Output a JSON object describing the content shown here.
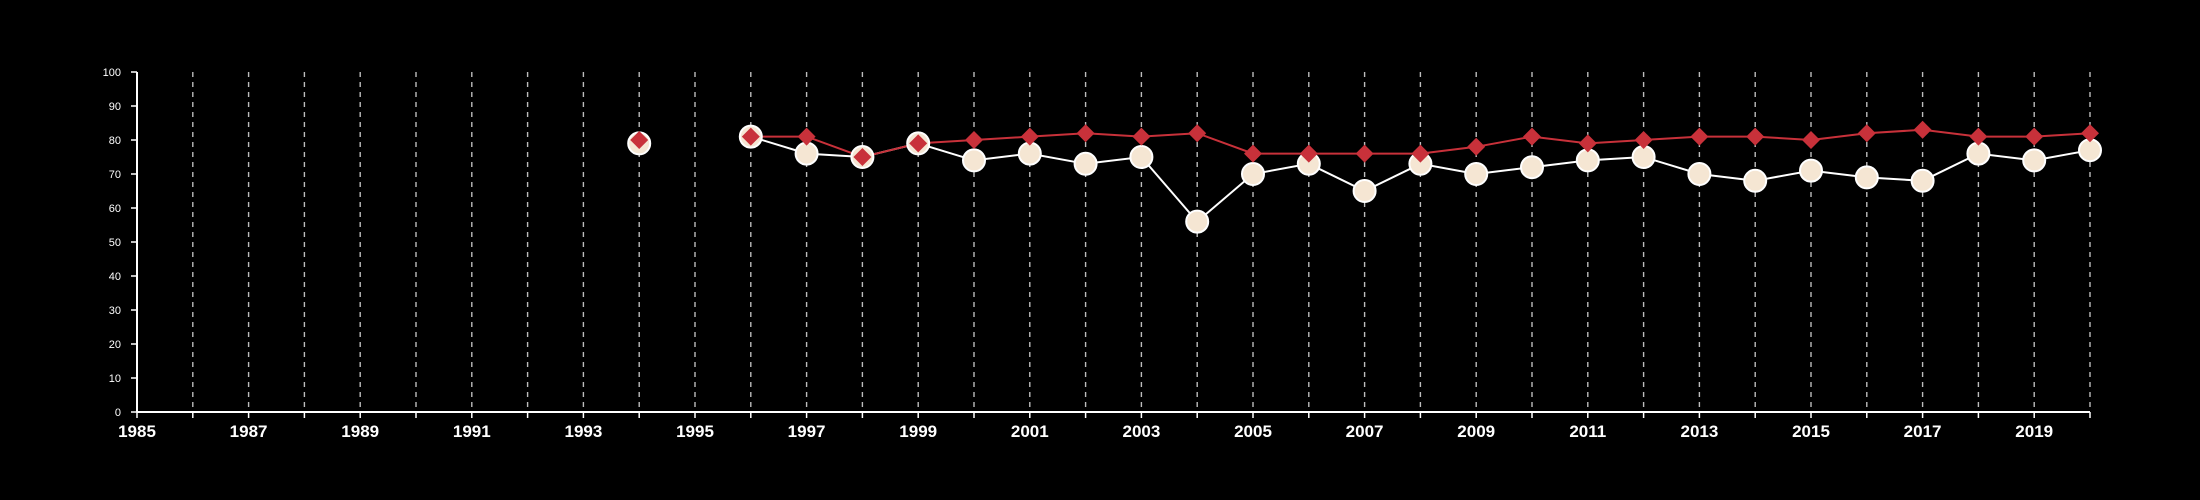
{
  "chart_data": {
    "type": "line",
    "title": "",
    "xlabel": "",
    "ylabel": "",
    "xlim": [
      1985,
      2020
    ],
    "ylim": [
      0,
      100
    ],
    "x_ticks": [
      1985,
      1987,
      1989,
      1991,
      1993,
      1995,
      1997,
      1999,
      2001,
      2003,
      2005,
      2007,
      2009,
      2011,
      2013,
      2015,
      2017,
      2019
    ],
    "y_ticks": [
      0,
      10,
      20,
      30,
      40,
      50,
      60,
      70,
      80,
      90,
      100
    ],
    "vertical_grid": "dashed, every year",
    "background_color": "#000000",
    "axis_color": "#ffffff",
    "series": [
      {
        "marker": "circle",
        "color": "#ffffff",
        "fill": "#f5e6d3",
        "points": [
          {
            "x": 1994,
            "y": 79
          },
          {
            "x": 1996,
            "y": 81
          },
          {
            "x": 1997,
            "y": 76
          },
          {
            "x": 1998,
            "y": 75
          },
          {
            "x": 1999,
            "y": 79
          },
          {
            "x": 2000,
            "y": 74
          },
          {
            "x": 2001,
            "y": 76
          },
          {
            "x": 2002,
            "y": 73
          },
          {
            "x": 2003,
            "y": 75
          },
          {
            "x": 2004,
            "y": 56
          },
          {
            "x": 2005,
            "y": 70
          },
          {
            "x": 2006,
            "y": 73
          },
          {
            "x": 2007,
            "y": 65
          },
          {
            "x": 2008,
            "y": 73
          },
          {
            "x": 2009,
            "y": 70
          },
          {
            "x": 2010,
            "y": 72
          },
          {
            "x": 2011,
            "y": 74
          },
          {
            "x": 2012,
            "y": 75
          },
          {
            "x": 2013,
            "y": 70
          },
          {
            "x": 2014,
            "y": 68
          },
          {
            "x": 2015,
            "y": 71
          },
          {
            "x": 2016,
            "y": 69
          },
          {
            "x": 2017,
            "y": 68
          },
          {
            "x": 2018,
            "y": 76
          },
          {
            "x": 2019,
            "y": 74
          },
          {
            "x": 2020,
            "y": 77
          }
        ]
      },
      {
        "marker": "diamond",
        "color": "#c8313a",
        "points": [
          {
            "x": 1994,
            "y": 80
          },
          {
            "x": 1996,
            "y": 81
          },
          {
            "x": 1997,
            "y": 81
          },
          {
            "x": 1998,
            "y": 75
          },
          {
            "x": 1999,
            "y": 79
          },
          {
            "x": 2000,
            "y": 80
          },
          {
            "x": 2001,
            "y": 81
          },
          {
            "x": 2002,
            "y": 82
          },
          {
            "x": 2003,
            "y": 81
          },
          {
            "x": 2004,
            "y": 82
          },
          {
            "x": 2005,
            "y": 76
          },
          {
            "x": 2006,
            "y": 76
          },
          {
            "x": 2007,
            "y": 76
          },
          {
            "x": 2008,
            "y": 76
          },
          {
            "x": 2009,
            "y": 78
          },
          {
            "x": 2010,
            "y": 81
          },
          {
            "x": 2011,
            "y": 79
          },
          {
            "x": 2012,
            "y": 80
          },
          {
            "x": 2013,
            "y": 81
          },
          {
            "x": 2014,
            "y": 81
          },
          {
            "x": 2015,
            "y": 80
          },
          {
            "x": 2016,
            "y": 82
          },
          {
            "x": 2017,
            "y": 83
          },
          {
            "x": 2018,
            "y": 81
          },
          {
            "x": 2019,
            "y": 81
          },
          {
            "x": 2020,
            "y": 82
          }
        ]
      }
    ]
  }
}
